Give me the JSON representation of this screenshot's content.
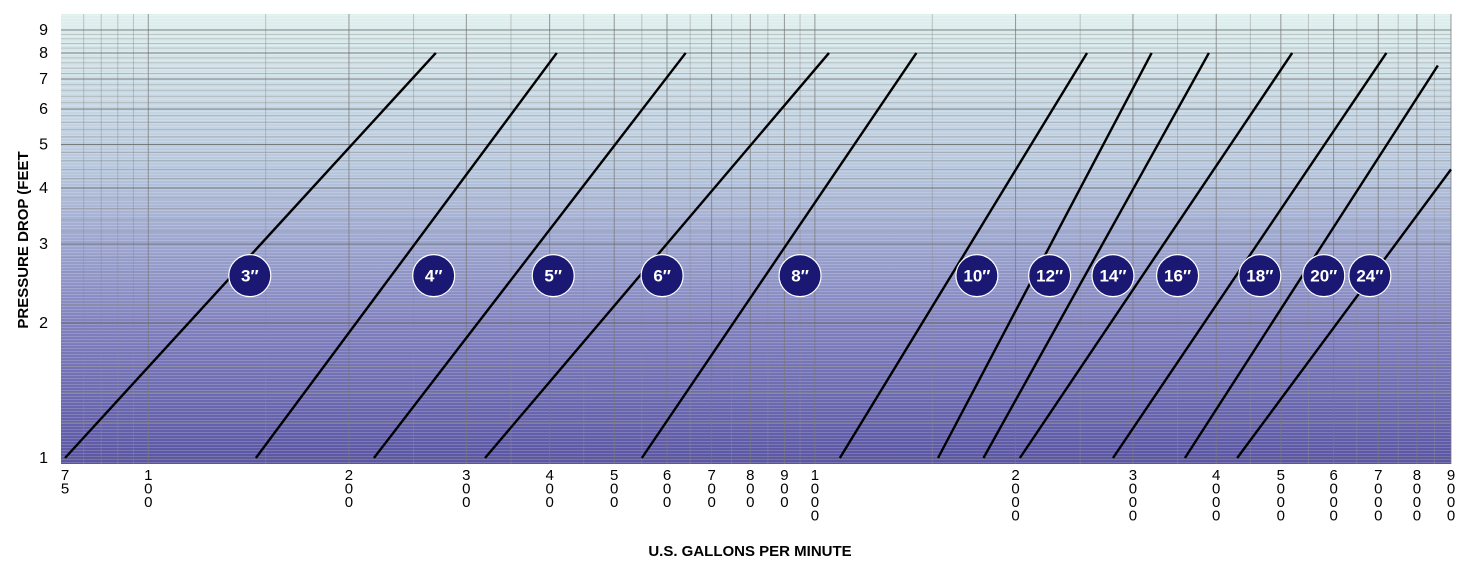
{
  "chart_data": {
    "type": "line",
    "xlabel": "U.S. GALLONS PER MINUTE",
    "ylabel": "PRESSURE DROP (FEET",
    "xscale": "log",
    "yscale": "log",
    "xlim": [
      75,
      9000
    ],
    "ylim": [
      1,
      9
    ],
    "grid": true,
    "background_gradient": [
      "#dff0ee",
      "#5a55a3"
    ],
    "line_color": "#000000",
    "badge_color": "#1a1873",
    "y_ticks": [
      {
        "value": 1,
        "label": "1"
      },
      {
        "value": 2,
        "label": "2"
      },
      {
        "value": 3,
        "label": "3"
      },
      {
        "value": 4,
        "label": "4"
      },
      {
        "value": 5,
        "label": "5"
      },
      {
        "value": 6,
        "label": "6"
      },
      {
        "value": 7,
        "label": "7"
      },
      {
        "value": 8,
        "label": "8"
      },
      {
        "value": 9,
        "label": "9"
      }
    ],
    "x_ticks": [
      {
        "value": 75,
        "label": "75"
      },
      {
        "value": 100,
        "label": "100"
      },
      {
        "value": 200,
        "label": "200"
      },
      {
        "value": 300,
        "label": "300"
      },
      {
        "value": 400,
        "label": "400"
      },
      {
        "value": 500,
        "label": "500"
      },
      {
        "value": 600,
        "label": "600"
      },
      {
        "value": 700,
        "label": "700"
      },
      {
        "value": 800,
        "label": "800"
      },
      {
        "value": 900,
        "label": "900"
      },
      {
        "value": 1000,
        "label": "1000"
      },
      {
        "value": 2000,
        "label": "2000"
      },
      {
        "value": 3000,
        "label": "3000"
      },
      {
        "value": 4000,
        "label": "4000"
      },
      {
        "value": 5000,
        "label": "5000"
      },
      {
        "value": 6000,
        "label": "6000"
      },
      {
        "value": 7000,
        "label": "7000"
      },
      {
        "value": 8000,
        "label": "8000"
      },
      {
        "value": 9000,
        "label": "9000"
      }
    ],
    "series": [
      {
        "name": "3″",
        "points": [
          [
            75,
            1
          ],
          [
            270,
            8
          ]
        ],
        "badge_at": [
          142,
          2.55
        ]
      },
      {
        "name": "4″",
        "points": [
          [
            145,
            1
          ],
          [
            410,
            8
          ]
        ],
        "badge_at": [
          268,
          2.55
        ]
      },
      {
        "name": "5″",
        "points": [
          [
            218,
            1
          ],
          [
            640,
            8
          ]
        ],
        "badge_at": [
          405,
          2.55
        ]
      },
      {
        "name": "6″",
        "points": [
          [
            320,
            1
          ],
          [
            1050,
            8
          ]
        ],
        "badge_at": [
          590,
          2.55
        ]
      },
      {
        "name": "8″",
        "points": [
          [
            550,
            1
          ],
          [
            1420,
            8
          ]
        ],
        "badge_at": [
          950,
          2.55
        ]
      },
      {
        "name": "10″",
        "points": [
          [
            1090,
            1
          ],
          [
            2560,
            8
          ]
        ],
        "badge_at": [
          1750,
          2.55
        ]
      },
      {
        "name": "12″",
        "points": [
          [
            1530,
            1
          ],
          [
            3200,
            8
          ]
        ],
        "badge_at": [
          2250,
          2.55
        ]
      },
      {
        "name": "14″",
        "points": [
          [
            1790,
            1
          ],
          [
            3900,
            8
          ]
        ],
        "badge_at": [
          2800,
          2.55
        ]
      },
      {
        "name": "16″",
        "points": [
          [
            2030,
            1
          ],
          [
            5200,
            8
          ]
        ],
        "badge_at": [
          3500,
          2.55
        ]
      },
      {
        "name": "18″",
        "points": [
          [
            2800,
            1
          ],
          [
            7200,
            8
          ]
        ],
        "badge_at": [
          4650,
          2.55
        ]
      },
      {
        "name": "20″",
        "points": [
          [
            3590,
            1
          ],
          [
            8600,
            7.5
          ]
        ],
        "badge_at": [
          5800,
          2.55
        ]
      },
      {
        "name": "24″",
        "points": [
          [
            4300,
            1
          ],
          [
            9000,
            4.4
          ]
        ],
        "badge_at": [
          6800,
          2.55
        ]
      }
    ]
  }
}
